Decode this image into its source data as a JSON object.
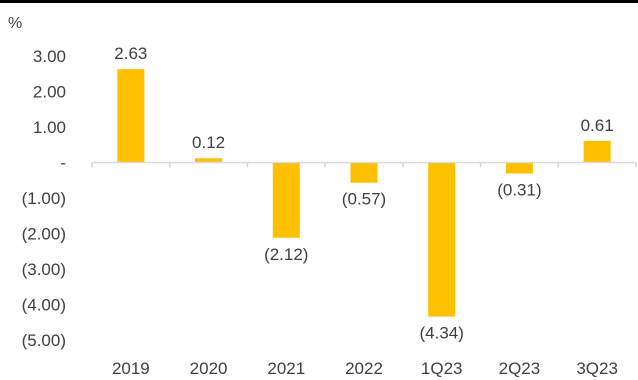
{
  "chart_data": {
    "type": "bar",
    "unit": "%",
    "categories": [
      "2019",
      "2020",
      "2021",
      "2022",
      "1Q23",
      "2Q23",
      "3Q23"
    ],
    "values": [
      2.63,
      0.12,
      -2.12,
      -0.57,
      -4.34,
      -0.31,
      0.61
    ],
    "value_labels": [
      "2.63",
      "0.12",
      "(2.12)",
      "(0.57)",
      "(4.34)",
      "(0.31)",
      "0.61"
    ],
    "y_ticks": [
      3,
      2,
      1,
      0,
      -1,
      -2,
      -3,
      -4,
      -5
    ],
    "y_tick_labels": [
      "3.00",
      "2.00",
      "1.00",
      "-",
      "(1.00)",
      "(2.00)",
      "(3.00)",
      "(4.00)",
      "(5.00)"
    ],
    "ylim": [
      -5,
      3
    ],
    "grid": false,
    "legend": "none",
    "colors": {
      "bar": "#FFC000",
      "axis": "#D9D9D9",
      "text": "#404040"
    }
  }
}
